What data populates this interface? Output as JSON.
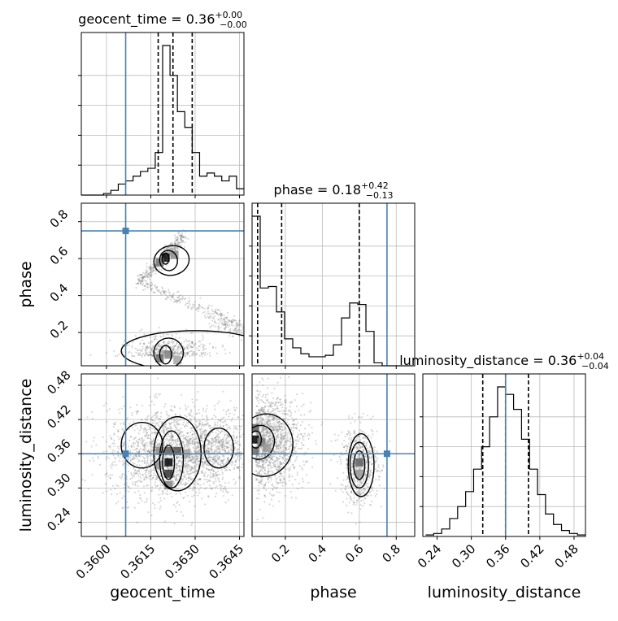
{
  "chart_data": {
    "type": "corner",
    "parameters": [
      "geocent_time",
      "phase",
      "luminosity_distance"
    ],
    "truths": {
      "geocent_time": 0.36065,
      "phase": 0.75,
      "luminosity_distance": 0.36
    },
    "colors": {
      "truth": "#4682b4",
      "hist": "#000000",
      "grid": "#bbbbbb",
      "samples": "#7f7f7f"
    },
    "grid": true,
    "panels": {
      "geocent_time_hist": {
        "title": {
          "name": "geocent_time",
          "median": "0.36",
          "plus": "+0.00",
          "minus": "−0.00"
        },
        "xlim": [
          0.35915,
          0.36465
        ],
        "quantiles": [
          0.36175,
          0.36225,
          0.3629
        ],
        "bin_edges": [
          0.35915,
          0.3594,
          0.35965,
          0.3599,
          0.36015,
          0.3604,
          0.36065,
          0.3609,
          0.36115,
          0.3614,
          0.36165,
          0.3619,
          0.36215,
          0.3624,
          0.36265,
          0.3629,
          0.36315,
          0.3634,
          0.36365,
          0.3639,
          0.36415,
          0.3644,
          0.36465
        ],
        "counts": [
          0,
          0,
          0,
          0.01,
          0.03,
          0.07,
          0.09,
          0.12,
          0.15,
          0.17,
          0.27,
          0.95,
          0.76,
          0.53,
          0.43,
          0.27,
          0.12,
          0.14,
          0.12,
          0.09,
          0.12,
          0.04
        ]
      },
      "phase_hist": {
        "title": {
          "name": "phase",
          "median": "0.18",
          "plus": "+0.42",
          "minus": "−0.13"
        },
        "xlim": [
          0.02,
          0.9
        ],
        "quantiles": [
          0.05,
          0.18,
          0.6
        ],
        "bin_edges": [
          0.02,
          0.064,
          0.108,
          0.152,
          0.196,
          0.24,
          0.284,
          0.328,
          0.372,
          0.416,
          0.46,
          0.504,
          0.548,
          0.592,
          0.636,
          0.68,
          0.724,
          0.768,
          0.812,
          0.856,
          0.9
        ],
        "counts": [
          1.0,
          0.52,
          0.53,
          0.36,
          0.18,
          0.12,
          0.08,
          0.06,
          0.06,
          0.07,
          0.14,
          0.32,
          0.42,
          0.41,
          0.23,
          0.02,
          0,
          0,
          0,
          0
        ]
      },
      "luminosity_distance_hist": {
        "title": {
          "name": "luminosity_distance",
          "median": "0.36",
          "plus": "+0.04",
          "minus": "−0.04"
        },
        "xlim": [
          0.215,
          0.5
        ],
        "quantiles": [
          0.32,
          0.36,
          0.4
        ],
        "bin_edges": [
          0.22,
          0.234,
          0.248,
          0.262,
          0.276,
          0.29,
          0.304,
          0.318,
          0.332,
          0.346,
          0.36,
          0.374,
          0.388,
          0.402,
          0.416,
          0.43,
          0.444,
          0.458,
          0.472,
          0.486,
          0.5
        ],
        "counts": [
          0.01,
          0.02,
          0.05,
          0.12,
          0.2,
          0.3,
          0.45,
          0.6,
          0.8,
          1.0,
          0.95,
          0.85,
          0.65,
          0.45,
          0.28,
          0.15,
          0.08,
          0.04,
          0.02,
          0.01
        ]
      },
      "phase_vs_geocent_time": {
        "xlim": [
          0.35915,
          0.36465
        ],
        "ylim": [
          0.02,
          0.9
        ],
        "density_cells": [
          {
            "x": 0.362,
            "y": 0.605,
            "level": 0.95
          },
          {
            "x": 0.3618,
            "y": 0.58,
            "level": 0.5
          },
          {
            "x": 0.3623,
            "y": 0.62,
            "level": 0.4
          },
          {
            "x": 0.3618,
            "y": 0.06,
            "level": 0.55
          },
          {
            "x": 0.3621,
            "y": 0.08,
            "level": 0.45
          },
          {
            "x": 0.3624,
            "y": 0.05,
            "level": 0.3
          }
        ]
      },
      "luminosity_distance_vs_geocent_time": {
        "xlim": [
          0.35915,
          0.36465
        ],
        "ylim": [
          0.215,
          0.5
        ],
        "density_cells": [
          {
            "x": 0.3621,
            "y": 0.345,
            "level": 1.0
          },
          {
            "x": 0.3621,
            "y": 0.325,
            "level": 0.8
          },
          {
            "x": 0.3621,
            "y": 0.365,
            "level": 0.6
          },
          {
            "x": 0.3624,
            "y": 0.365,
            "level": 0.65
          },
          {
            "x": 0.3618,
            "y": 0.365,
            "level": 0.4
          },
          {
            "x": 0.3627,
            "y": 0.36,
            "level": 0.3
          },
          {
            "x": 0.3618,
            "y": 0.34,
            "level": 0.35
          },
          {
            "x": 0.3621,
            "y": 0.305,
            "level": 0.45
          }
        ]
      },
      "luminosity_distance_vs_phase": {
        "xlim": [
          0.02,
          0.9
        ],
        "ylim": [
          0.215,
          0.5
        ],
        "density_cells": [
          {
            "x": 0.035,
            "y": 0.385,
            "level": 1.0
          },
          {
            "x": 0.035,
            "y": 0.405,
            "level": 0.6
          },
          {
            "x": 0.035,
            "y": 0.365,
            "level": 0.55
          },
          {
            "x": 0.07,
            "y": 0.38,
            "level": 0.5
          },
          {
            "x": 0.1,
            "y": 0.37,
            "level": 0.35
          },
          {
            "x": 0.6,
            "y": 0.345,
            "level": 0.6
          },
          {
            "x": 0.6,
            "y": 0.325,
            "level": 0.35
          }
        ]
      }
    },
    "ticks": {
      "geocent_time": {
        "values": [
          0.36,
          0.3615,
          0.363,
          0.3645
        ],
        "labels": [
          "0.3600",
          "0.3615",
          "0.3630",
          "0.3645"
        ]
      },
      "phase": {
        "values": [
          0.2,
          0.4,
          0.6,
          0.8
        ],
        "labels": [
          "0.2",
          "0.4",
          "0.6",
          "0.8"
        ]
      },
      "luminosity_distance": {
        "values": [
          0.24,
          0.3,
          0.36,
          0.42,
          0.48
        ],
        "labels": [
          "0.24",
          "0.30",
          "0.36",
          "0.42",
          "0.48"
        ]
      }
    },
    "xlabels": {
      "geocent_time": "geocent_time",
      "phase": "phase",
      "luminosity_distance": "luminosity_distance"
    },
    "ylabels": {
      "phase": "phase",
      "luminosity_distance": "luminosity_distance"
    }
  }
}
